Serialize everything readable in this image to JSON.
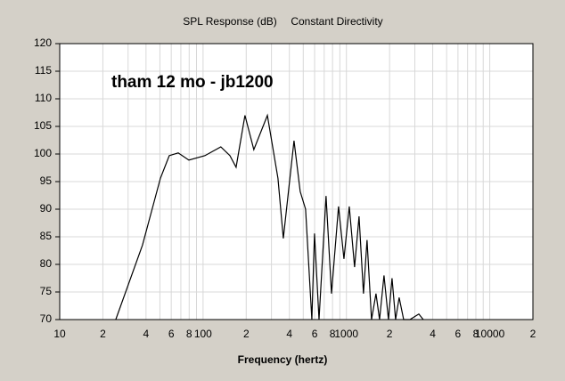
{
  "chart_data": {
    "type": "line",
    "title": "SPL Response (dB)",
    "subtitle": "Constant Directivity",
    "annotation": "tham 12 mo - jb1200",
    "xlabel": "Frequency (hertz)",
    "xscale": "log",
    "grid": true,
    "xlim": [
      10,
      20000
    ],
    "ylim": [
      70,
      120
    ],
    "yticks": [
      70,
      75,
      80,
      85,
      90,
      95,
      100,
      105,
      110,
      115,
      120
    ],
    "xticks": [
      10,
      {
        "value": 20,
        "label": "2"
      },
      {
        "value": 40,
        "label": "4"
      },
      {
        "value": 60,
        "label": "6"
      },
      {
        "value": 80,
        "label": "8"
      },
      100,
      {
        "value": 200,
        "label": "2"
      },
      {
        "value": 400,
        "label": "4"
      },
      {
        "value": 600,
        "label": "6"
      },
      {
        "value": 800,
        "label": "8"
      },
      1000,
      {
        "value": 2000,
        "label": "2"
      },
      {
        "value": 4000,
        "label": "4"
      },
      {
        "value": 6000,
        "label": "6"
      },
      {
        "value": 8000,
        "label": "8"
      },
      10000,
      {
        "value": 20000,
        "label": "2"
      }
    ],
    "xminor": [
      30,
      50,
      70,
      90,
      300,
      500,
      700,
      900,
      3000,
      5000,
      7000,
      9000
    ],
    "series": [
      {
        "name": "SPL",
        "color": "#000000",
        "x": [
          24.6,
          37.8,
          50.4,
          58.1,
          67.1,
          79.6,
          103,
          133,
          154,
          170,
          196,
          226,
          281,
          333,
          363,
          431,
          476,
          519,
          574,
          599,
          644,
          721,
          787,
          881,
          961,
          1047,
          1140,
          1225,
          1315,
          1393,
          1497,
          1608,
          1703,
          1829,
          1964,
          2081,
          2203,
          2333,
          2508,
          2772,
          3200,
          3437
        ],
        "values": [
          70,
          83.5,
          95.6,
          99.7,
          100.2,
          98.9,
          99.7,
          101.3,
          99.7,
          97.6,
          107,
          100.8,
          107,
          95.6,
          84.7,
          102.4,
          93.2,
          90,
          70,
          85.6,
          70,
          92.4,
          74.7,
          90.5,
          81,
          90.5,
          79.5,
          88.7,
          74.7,
          84.4,
          70,
          74.7,
          70,
          78,
          70,
          77.5,
          70,
          74,
          70,
          70,
          71,
          70
        ]
      }
    ]
  }
}
